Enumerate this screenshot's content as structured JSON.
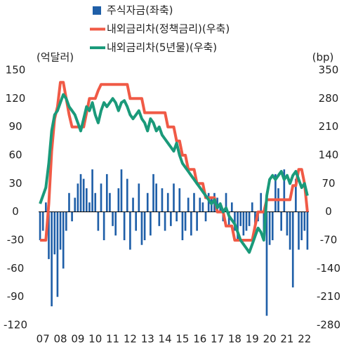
{
  "chart_data": {
    "type": "bar_line",
    "y_label": "(억달러)",
    "y2_label": "(bp)",
    "categories": [
      null,
      "07",
      null,
      null,
      null,
      null,
      null,
      "08",
      null,
      null,
      null,
      null,
      null,
      "09",
      null,
      null,
      null,
      null,
      null,
      "10",
      null,
      null,
      null,
      null,
      null,
      "11",
      null,
      null,
      null,
      null,
      null,
      "12",
      null,
      null,
      null,
      null,
      null,
      "13",
      null,
      null,
      null,
      null,
      null,
      "14",
      null,
      null,
      null,
      null,
      null,
      "15",
      null,
      null,
      null,
      null,
      null,
      "16",
      null,
      null,
      null,
      null,
      null,
      "17",
      null,
      null,
      null,
      null,
      null,
      "18",
      null,
      null,
      null,
      null,
      null,
      "19",
      null,
      null,
      null,
      null,
      null,
      "20",
      null,
      null,
      null,
      null,
      null,
      "21",
      null,
      null,
      null,
      null,
      null,
      "22",
      null
    ],
    "ylim": [
      -120,
      150
    ],
    "yticks": [
      -120,
      -90,
      -60,
      -30,
      0,
      30,
      60,
      90,
      120,
      150
    ],
    "y2lim": [
      -280,
      350
    ],
    "y2ticks": [
      -280,
      -210,
      -140,
      -70,
      0,
      70,
      140,
      210,
      280,
      350
    ],
    "series": [
      {
        "name": "주식자금(좌축)",
        "type": "bar",
        "color": "#1f5fa8",
        "values": [
          -30,
          -20,
          10,
          -50,
          -100,
          -45,
          -90,
          -40,
          -60,
          -20,
          20,
          -10,
          15,
          30,
          40,
          35,
          25,
          10,
          45,
          20,
          -20,
          30,
          -30,
          40,
          20,
          -15,
          -25,
          25,
          45,
          -30,
          35,
          -40,
          15,
          -20,
          30,
          -35,
          -30,
          20,
          -25,
          40,
          30,
          -15,
          25,
          -20,
          20,
          -15,
          30,
          -10,
          25,
          -30,
          -20,
          15,
          -25,
          20,
          -20,
          15,
          10,
          -10,
          20,
          15,
          20,
          15,
          10,
          -10,
          20,
          -15,
          10,
          -20,
          -30,
          -15,
          -25,
          -20,
          -15,
          10,
          -20,
          -10,
          20,
          -25,
          -110,
          -35,
          -30,
          40,
          25,
          -20,
          45,
          -25,
          -40,
          -80,
          35,
          -40,
          -30,
          -20,
          -40
        ]
      },
      {
        "name": "내외금리차(정책금리)(우축)",
        "type": "line",
        "axis": "y2",
        "color": "#f05a46",
        "values": [
          -70,
          -70,
          -70,
          20,
          150,
          230,
          260,
          320,
          320,
          280,
          240,
          210,
          210,
          210,
          210,
          210,
          245,
          280,
          280,
          280,
          300,
          315,
          315,
          315,
          315,
          315,
          315,
          315,
          315,
          315,
          315,
          280,
          280,
          280,
          280,
          280,
          245,
          245,
          245,
          245,
          245,
          245,
          245,
          245,
          210,
          210,
          210,
          175,
          175,
          140,
          140,
          105,
          105,
          105,
          70,
          70,
          70,
          35,
          35,
          35,
          35,
          0,
          0,
          0,
          -35,
          -35,
          -35,
          -70,
          -70,
          -70,
          -70,
          -70,
          -70,
          -70,
          -35,
          0,
          0,
          0,
          30,
          30,
          30,
          30,
          30,
          30,
          30,
          30,
          30,
          65,
          65,
          105,
          105,
          70,
          0
        ]
      },
      {
        "name": "내외금리차(5년물)(우축)",
        "type": "line",
        "axis": "y2",
        "color": "#1a9a7a",
        "values": [
          20,
          40,
          60,
          120,
          200,
          240,
          250,
          270,
          290,
          280,
          260,
          250,
          240,
          220,
          200,
          230,
          260,
          250,
          270,
          240,
          220,
          250,
          270,
          260,
          270,
          280,
          270,
          250,
          270,
          275,
          260,
          240,
          230,
          240,
          250,
          230,
          220,
          200,
          230,
          220,
          200,
          210,
          190,
          180,
          170,
          160,
          150,
          170,
          140,
          120,
          110,
          100,
          90,
          80,
          70,
          60,
          50,
          40,
          30,
          20,
          30,
          10,
          20,
          0,
          10,
          -10,
          -20,
          -30,
          -50,
          -70,
          -80,
          -90,
          -100,
          -80,
          -60,
          -40,
          -50,
          -70,
          40,
          80,
          90,
          80,
          90,
          100,
          80,
          90,
          70,
          90,
          100,
          80,
          60,
          70,
          40
        ]
      }
    ]
  }
}
